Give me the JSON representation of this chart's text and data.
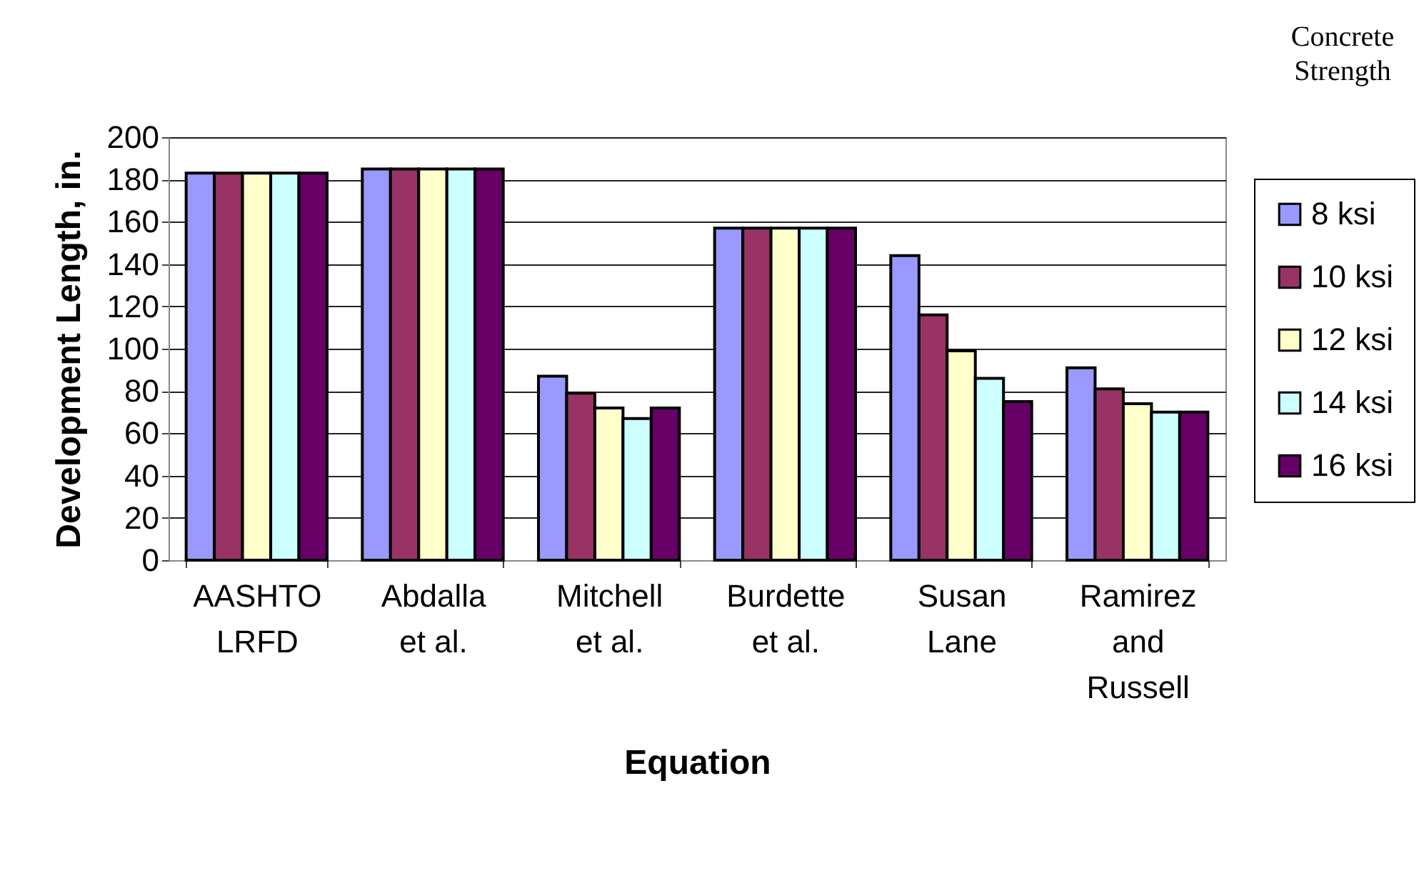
{
  "chart_data": {
    "type": "bar",
    "xlabel": "Equation",
    "ylabel": "Development Length, in.",
    "legend_title": "Concrete\nStrength",
    "categories": [
      "AASHTO\nLRFD",
      "Abdalla\net al.",
      "Mitchell\net al.",
      "Burdette\net al.",
      "Susan\nLane",
      "Ramirez\nand\nRussell"
    ],
    "series": [
      {
        "name": "8 ksi",
        "color": "#9999ff",
        "values": [
          183,
          185,
          87,
          157,
          144,
          91
        ]
      },
      {
        "name": "10 ksi",
        "color": "#993366",
        "values": [
          183,
          185,
          79,
          157,
          116,
          81
        ]
      },
      {
        "name": "12 ksi",
        "color": "#ffffcc",
        "values": [
          183,
          185,
          72,
          157,
          99,
          74
        ]
      },
      {
        "name": "14 ksi",
        "color": "#ccffff",
        "values": [
          183,
          185,
          67,
          157,
          86,
          70
        ]
      },
      {
        "name": "16 ksi",
        "color": "#660066",
        "values": [
          183,
          185,
          72,
          157,
          75,
          70
        ]
      }
    ],
    "ylim": [
      0,
      200
    ],
    "yticks": [
      0,
      20,
      40,
      60,
      80,
      100,
      120,
      140,
      160,
      180,
      200
    ],
    "grid": "y",
    "legend": "right"
  }
}
